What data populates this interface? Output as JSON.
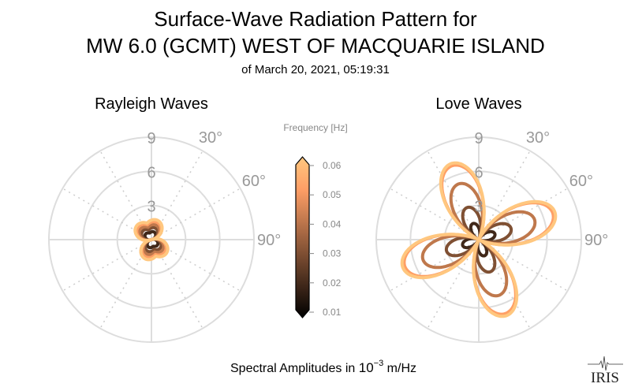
{
  "chart_data": {
    "type": "polar-line",
    "title": [
      "Surface-Wave Radiation Pattern for",
      "MW 6.0 (GCMT) WEST OF MACQUARIE ISLAND"
    ],
    "subtitle": "of March 20, 2021, 05:19:31",
    "xlabel_prefix": "Spectral Amplitudes in ",
    "xlabel_base": "10",
    "xlabel_exp": "−3",
    "xlabel_suffix": " m/Hz",
    "colorbar": {
      "label": "Frequency [Hz]",
      "range": [
        0.01,
        0.06
      ],
      "ticks": [
        "0.01",
        "0.02",
        "0.03",
        "0.04",
        "0.05",
        "0.06"
      ],
      "colormap": "copper"
    },
    "radial_ticks": [
      "3",
      "6",
      "9"
    ],
    "radial_max": 9,
    "angle_ticks": [
      "30°",
      "60°",
      "90°"
    ],
    "frequencies": [
      0.02,
      0.03,
      0.04,
      0.05,
      0.06
    ],
    "panels": [
      {
        "title": "Rayleigh Waves",
        "shape": "two-lobe",
        "lobe_azimuth_deg": -15,
        "max_amplitudes": [
          0.8,
          1.2,
          1.5,
          1.8,
          2.0
        ]
      },
      {
        "title": "Love Waves",
        "shape": "four-lobe",
        "lobe_azimuth_deg": -20,
        "max_amplitudes": [
          1.5,
          3.0,
          5.2,
          6.9,
          7.1
        ]
      }
    ]
  },
  "logo": "IRIS"
}
